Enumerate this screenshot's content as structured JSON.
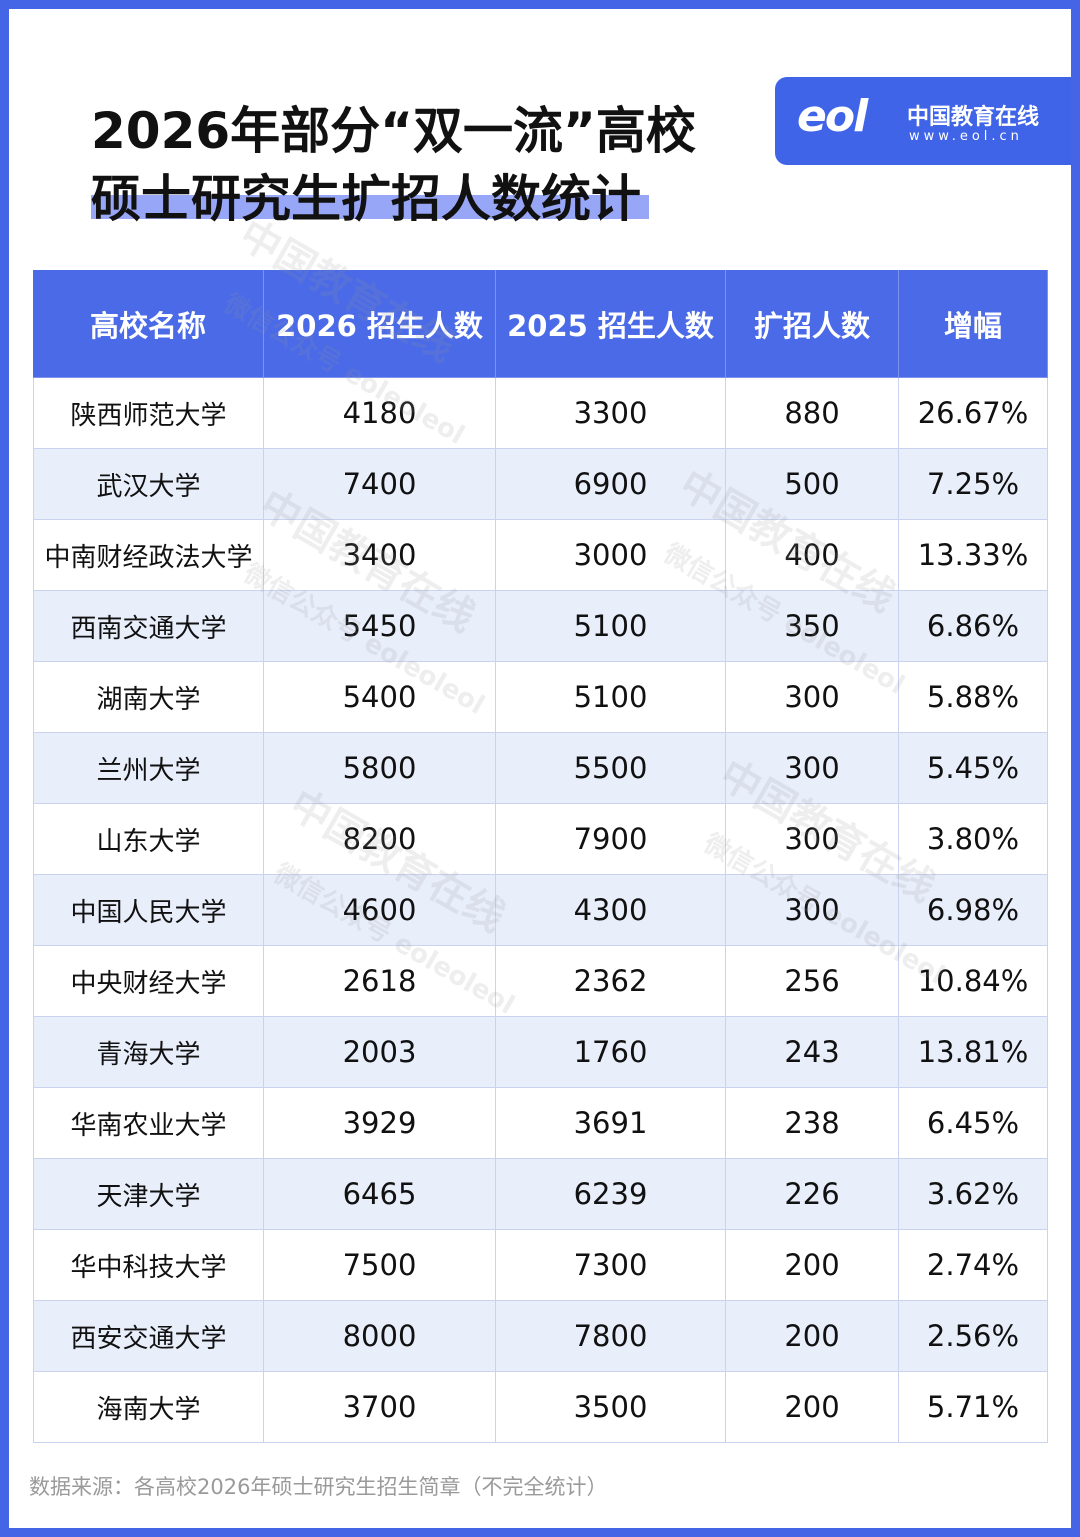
{
  "header": {
    "title_line1": "2026年部分“双一流”高校",
    "title_line2": "硕士研究生扩招人数统计"
  },
  "logo": {
    "mark": "eol",
    "name": "中国教育在线",
    "url": "www.eol.cn"
  },
  "table": {
    "columns": [
      "高校名称",
      "2026 招生人数",
      "2025 招生人数",
      "扩招人数",
      "增幅"
    ],
    "rows": [
      [
        "陕西师范大学",
        "4180",
        "3300",
        "880",
        "26.67%"
      ],
      [
        "武汉大学",
        "7400",
        "6900",
        "500",
        "7.25%"
      ],
      [
        "中南财经政法大学",
        "3400",
        "3000",
        "400",
        "13.33%"
      ],
      [
        "西南交通大学",
        "5450",
        "5100",
        "350",
        "6.86%"
      ],
      [
        "湖南大学",
        "5400",
        "5100",
        "300",
        "5.88%"
      ],
      [
        "兰州大学",
        "5800",
        "5500",
        "300",
        "5.45%"
      ],
      [
        "山东大学",
        "8200",
        "7900",
        "300",
        "3.80%"
      ],
      [
        "中国人民大学",
        "4600",
        "4300",
        "300",
        "6.98%"
      ],
      [
        "中央财经大学",
        "2618",
        "2362",
        "256",
        "10.84%"
      ],
      [
        "青海大学",
        "2003",
        "1760",
        "243",
        "13.81%"
      ],
      [
        "华南农业大学",
        "3929",
        "3691",
        "238",
        "6.45%"
      ],
      [
        "天津大学",
        "6465",
        "6239",
        "226",
        "3.62%"
      ],
      [
        "华中科技大学",
        "7500",
        "7300",
        "200",
        "2.74%"
      ],
      [
        "西安交通大学",
        "8000",
        "7800",
        "200",
        "2.56%"
      ],
      [
        "海南大学",
        "3700",
        "3500",
        "200",
        "5.71%"
      ]
    ]
  },
  "watermark": [
    "中国教育在线",
    "微信公众号 eoleoleol"
  ],
  "footer": {
    "source": "数据来源：各高校2026年硕士研究生招生简章（不完全统计）"
  }
}
